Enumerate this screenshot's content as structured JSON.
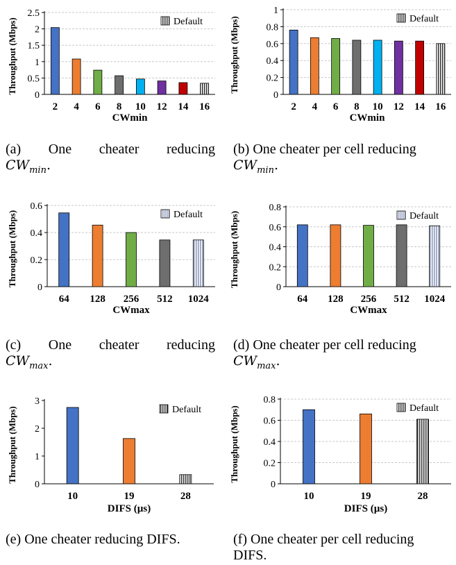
{
  "colors": {
    "blue": "#4472c4",
    "orange": "#ed7d31",
    "green": "#70ad47",
    "gray": "#6e6e6e",
    "cyan": "#00b0f0",
    "purple": "#7030a0",
    "red": "#c00000",
    "grid": "#c8c8c8"
  },
  "chart_data": [
    {
      "id": "a",
      "type": "bar",
      "ylabel": "Throughput (Mbps)",
      "xlabel": "CWmin",
      "categories": [
        "2",
        "4",
        "6",
        "8",
        "10",
        "12",
        "14",
        "16"
      ],
      "values": [
        2.04,
        1.08,
        0.74,
        0.57,
        0.47,
        0.41,
        0.36,
        0.34
      ],
      "ylim": [
        0,
        2.5
      ],
      "yticks": [
        "0",
        "0.5",
        "1",
        "1.5",
        "2",
        "2.5"
      ],
      "ytick_values": [
        0,
        0.5,
        1,
        1.5,
        2,
        2.5
      ],
      "bar_colors": [
        "blue",
        "orange",
        "green",
        "gray",
        "cyan",
        "purple",
        "red",
        "stripes"
      ],
      "legend": "Default",
      "legend_placement": "top-right",
      "grid": true
    },
    {
      "id": "b",
      "type": "bar",
      "ylabel": "Throughput (Mbps)",
      "xlabel": "CWmin",
      "categories": [
        "2",
        "4",
        "6",
        "8",
        "10",
        "12",
        "14",
        "16"
      ],
      "values": [
        0.76,
        0.67,
        0.66,
        0.64,
        0.64,
        0.63,
        0.63,
        0.6
      ],
      "ylim": [
        0,
        1
      ],
      "yticks": [
        "0",
        "0.2",
        "0.4",
        "0.6",
        "0.8",
        "1"
      ],
      "ytick_values": [
        0,
        0.2,
        0.4,
        0.6,
        0.8,
        1
      ],
      "bar_colors": [
        "blue",
        "orange",
        "green",
        "gray",
        "cyan",
        "purple",
        "red",
        "stripes"
      ],
      "legend": "Default",
      "legend_placement": "top-right",
      "grid": true
    },
    {
      "id": "c",
      "type": "bar",
      "ylabel": "Throughput (Mbps)",
      "xlabel": "CWmax",
      "categories": [
        "64",
        "128",
        "256",
        "512",
        "1024"
      ],
      "values": [
        0.545,
        0.455,
        0.4,
        0.345,
        0.345
      ],
      "ylim": [
        0,
        0.6
      ],
      "yticks": [
        "0",
        "0.2",
        "0.4",
        "0.6"
      ],
      "ytick_values": [
        0,
        0.2,
        0.4,
        0.6
      ],
      "bar_colors": [
        "blue",
        "orange",
        "green",
        "gray",
        "stripes-light"
      ],
      "legend": "Default",
      "legend_placement": "top-right",
      "grid": true
    },
    {
      "id": "d",
      "type": "bar",
      "ylabel": "Throughput (Mbps)",
      "xlabel": "CWmax",
      "categories": [
        "64",
        "128",
        "256",
        "512",
        "1024"
      ],
      "values": [
        0.62,
        0.62,
        0.615,
        0.62,
        0.61
      ],
      "ylim": [
        0,
        0.8
      ],
      "yticks": [
        "0",
        "0.2",
        "0.4",
        "0.6",
        "0.8"
      ],
      "ytick_values": [
        0,
        0.2,
        0.4,
        0.6,
        0.8
      ],
      "bar_colors": [
        "blue",
        "orange",
        "green",
        "gray",
        "stripes-light"
      ],
      "legend": "Default",
      "legend_placement": "top-right",
      "grid": true
    },
    {
      "id": "e",
      "type": "bar",
      "ylabel": "Throughput (Mbps)",
      "xlabel": "DIFS (µs)",
      "categories": [
        "10",
        "19",
        "28"
      ],
      "values": [
        2.75,
        1.63,
        0.33
      ],
      "ylim": [
        0,
        3
      ],
      "yticks": [
        "0",
        "1",
        "2",
        "3"
      ],
      "ytick_values": [
        0,
        1,
        2,
        3
      ],
      "bar_colors": [
        "blue",
        "orange",
        "stripes"
      ],
      "legend": "Default",
      "legend_placement": "top-right",
      "grid": false
    },
    {
      "id": "f",
      "type": "bar",
      "ylabel": "Throughput (Mbps)",
      "xlabel": "DIFS (µs)",
      "categories": [
        "10",
        "19",
        "28"
      ],
      "values": [
        0.7,
        0.66,
        0.61
      ],
      "ylim": [
        0,
        0.8
      ],
      "yticks": [
        "0",
        "0.2",
        "0.4",
        "0.6",
        "0.8"
      ],
      "ytick_values": [
        0,
        0.2,
        0.4,
        0.6,
        0.8
      ],
      "bar_colors": [
        "blue",
        "orange",
        "stripes"
      ],
      "legend": "Default",
      "legend_placement": "top-right",
      "grid": true
    }
  ],
  "captions": {
    "a": {
      "prefix": "(a)",
      "words": [
        "One",
        "cheater",
        "reducing"
      ],
      "math_base": "CW",
      "math_sub": "min"
    },
    "b": {
      "text": "(b) One cheater per cell reducing",
      "math_base": "CW",
      "math_sub": "min"
    },
    "c": {
      "prefix": "(c)",
      "words": [
        "One",
        "cheater",
        "reducing"
      ],
      "math_base": "CW",
      "math_sub": "max"
    },
    "d": {
      "text": "(d) One cheater per cell reducing",
      "math_base": "CW",
      "math_sub": "max"
    },
    "e": {
      "text": "(e) One cheater reducing DIFS."
    },
    "f": {
      "text": "(f) One cheater per cell reducing",
      "line2": "DIFS."
    }
  }
}
